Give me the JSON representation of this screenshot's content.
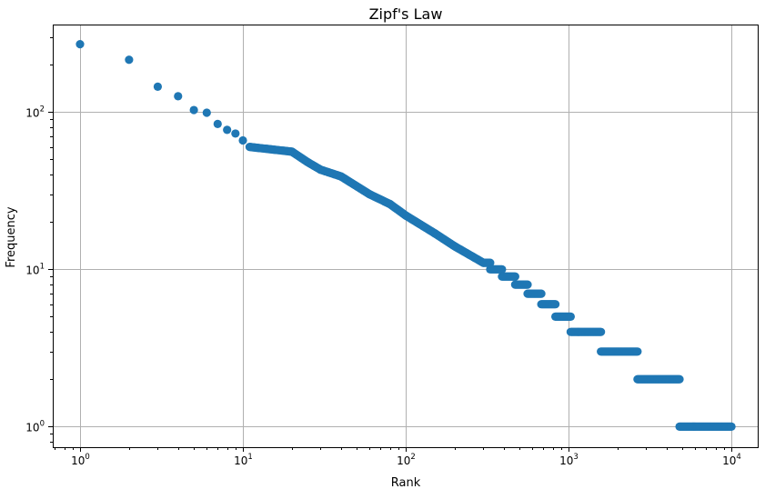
{
  "chart_data": {
    "type": "scatter",
    "title": "Zipf's Law",
    "xlabel": "Rank",
    "ylabel": "Frequency",
    "xscale": "log",
    "yscale": "log",
    "xlim": [
      0.68,
      14500
    ],
    "ylim": [
      0.74,
      360
    ],
    "grid": true,
    "color": "#1f77b4",
    "x_ticks": [
      {
        "base": "10",
        "exp": "0"
      },
      {
        "base": "10",
        "exp": "1"
      },
      {
        "base": "10",
        "exp": "2"
      },
      {
        "base": "10",
        "exp": "3"
      },
      {
        "base": "10",
        "exp": "4"
      }
    ],
    "y_ticks": [
      {
        "base": "10",
        "exp": "0"
      },
      {
        "base": "10",
        "exp": "1"
      },
      {
        "base": "10",
        "exp": "2"
      }
    ],
    "points": [
      [
        1,
        270
      ],
      [
        2,
        215
      ],
      [
        3,
        145
      ],
      [
        4,
        126
      ],
      [
        5,
        103
      ],
      [
        6,
        99
      ],
      [
        7,
        84
      ],
      [
        8,
        77
      ],
      [
        9,
        73
      ],
      [
        10,
        66
      ]
    ],
    "segments": [
      {
        "x": [
          11,
          20
        ],
        "y": [
          60,
          56
        ]
      },
      {
        "x": [
          20,
          25
        ],
        "y": [
          56,
          48
        ]
      },
      {
        "x": [
          25,
          30
        ],
        "y": [
          48,
          43
        ]
      },
      {
        "x": [
          30,
          40
        ],
        "y": [
          43,
          39
        ]
      },
      {
        "x": [
          40,
          60
        ],
        "y": [
          39,
          30
        ]
      },
      {
        "x": [
          60,
          80
        ],
        "y": [
          30,
          26
        ]
      },
      {
        "x": [
          80,
          100
        ],
        "y": [
          26,
          22
        ]
      },
      {
        "x": [
          100,
          150
        ],
        "y": [
          22,
          17
        ]
      },
      {
        "x": [
          150,
          200
        ],
        "y": [
          17,
          14
        ]
      },
      {
        "x": [
          200,
          300
        ],
        "y": [
          14,
          11
        ]
      }
    ],
    "plateaus": [
      {
        "y": 11,
        "x": [
          300,
          330
        ]
      },
      {
        "y": 10,
        "x": [
          330,
          390
        ]
      },
      {
        "y": 9,
        "x": [
          390,
          470
        ]
      },
      {
        "y": 8,
        "x": [
          470,
          560
        ]
      },
      {
        "y": 7,
        "x": [
          560,
          680
        ]
      },
      {
        "y": 6,
        "x": [
          680,
          830
        ]
      },
      {
        "y": 5,
        "x": [
          830,
          1030
        ]
      },
      {
        "y": 4,
        "x": [
          1030,
          1580
        ]
      },
      {
        "y": 3,
        "x": [
          1580,
          2650
        ]
      },
      {
        "y": 2,
        "x": [
          2650,
          4800
        ]
      },
      {
        "y": 1,
        "x": [
          4800,
          10000
        ]
      }
    ]
  }
}
